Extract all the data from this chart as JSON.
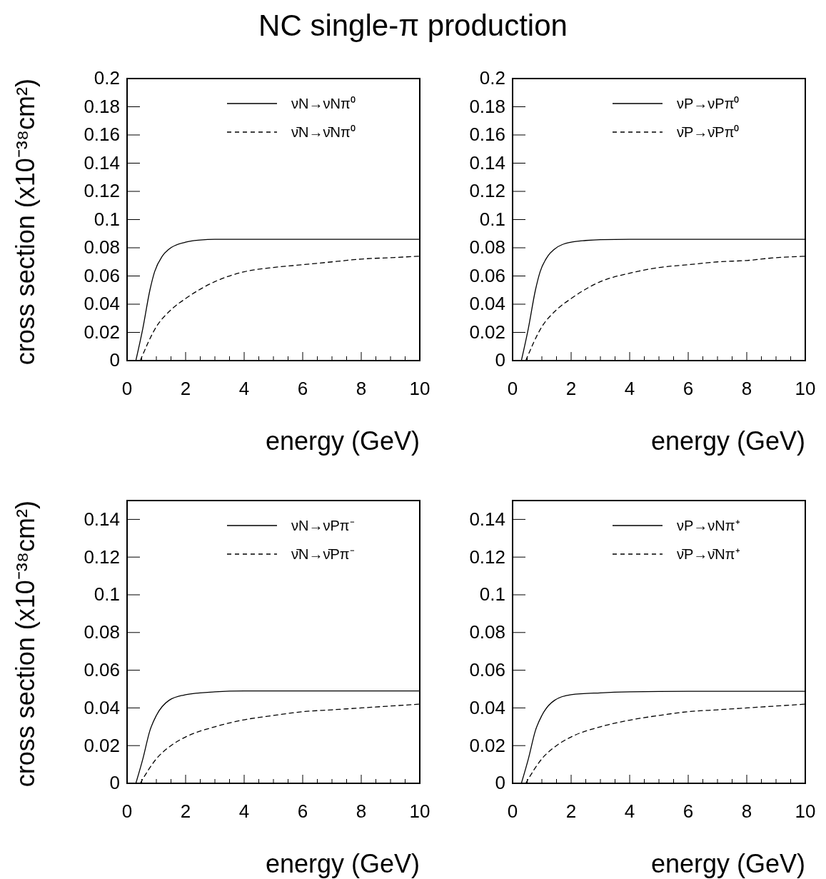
{
  "chart_data": [
    {
      "type": "line",
      "title": "NC single-π production",
      "xlabel": "energy (GeV)",
      "ylabel": "cross section (x10⁻³⁸cm²)",
      "xlim": [
        0,
        10
      ],
      "xticks": [
        0,
        2,
        4,
        6,
        8,
        10
      ],
      "ylim": [
        0,
        0.2
      ],
      "yticks": [
        0,
        0.02,
        0.04,
        0.06,
        0.08,
        0.1,
        0.12,
        0.14,
        0.16,
        0.18,
        0.2
      ],
      "legend": "top right",
      "series": [
        {
          "name": "νN→νNπ⁰",
          "color": "#000000",
          "line_style": "solid",
          "x": [
            0.3,
            0.54,
            0.78,
            0.94,
            1.2,
            1.43,
            2,
            2.5,
            3,
            4,
            6,
            8,
            10
          ],
          "values": [
            0,
            0.023,
            0.05,
            0.063,
            0.074,
            0.079,
            0.084,
            0.0855,
            0.086,
            0.086,
            0.086,
            0.086,
            0.086
          ]
        },
        {
          "name": "ν̄N→ν̄Nπ⁰",
          "color": "#000000",
          "line_style": "dashed",
          "x": [
            0.45,
            1,
            1.5,
            2,
            3,
            4,
            5,
            6,
            7,
            8,
            9,
            10
          ],
          "values": [
            0,
            0.024,
            0.036,
            0.044,
            0.056,
            0.063,
            0.066,
            0.068,
            0.07,
            0.072,
            0.073,
            0.074
          ]
        }
      ]
    },
    {
      "type": "line",
      "xlabel": "energy (GeV)",
      "xlim": [
        0,
        10
      ],
      "xticks": [
        0,
        2,
        4,
        6,
        8,
        10
      ],
      "ylim": [
        0,
        0.2
      ],
      "yticks": [
        0,
        0.02,
        0.04,
        0.06,
        0.08,
        0.1,
        0.12,
        0.14,
        0.16,
        0.18,
        0.2
      ],
      "legend": "top right",
      "series": [
        {
          "name": "νP→νPπ⁰",
          "color": "#000000",
          "line_style": "solid",
          "x": [
            0.3,
            0.54,
            0.78,
            0.94,
            1.2,
            1.43,
            2,
            2.5,
            3,
            4,
            6,
            8,
            10
          ],
          "values": [
            0,
            0.023,
            0.05,
            0.063,
            0.074,
            0.079,
            0.084,
            0.0852,
            0.0858,
            0.086,
            0.086,
            0.086,
            0.086
          ]
        },
        {
          "name": "ν̄P→ν̄Pπ⁰",
          "color": "#000000",
          "line_style": "dashed",
          "x": [
            0.45,
            1,
            1.5,
            2,
            3,
            4,
            5,
            6,
            7,
            8,
            9,
            10
          ],
          "values": [
            0,
            0.024,
            0.036,
            0.044,
            0.056,
            0.062,
            0.066,
            0.068,
            0.07,
            0.071,
            0.073,
            0.074
          ]
        }
      ]
    },
    {
      "type": "line",
      "xlabel": "energy (GeV)",
      "ylabel": "cross section (x10⁻³⁸cm²)",
      "xlim": [
        0,
        10
      ],
      "xticks": [
        0,
        2,
        4,
        6,
        8,
        10
      ],
      "ylim": [
        0,
        0.15
      ],
      "yticks": [
        0,
        0.02,
        0.04,
        0.06,
        0.08,
        0.1,
        0.12,
        0.14
      ],
      "legend": "top right",
      "series": [
        {
          "name": "νN→νPπ⁻",
          "color": "#000000",
          "line_style": "solid",
          "x": [
            0.3,
            0.54,
            0.78,
            1,
            1.43,
            2,
            3,
            4,
            6,
            8,
            10
          ],
          "values": [
            0,
            0.013,
            0.028,
            0.036,
            0.044,
            0.047,
            0.0485,
            0.049,
            0.049,
            0.049,
            0.049
          ]
        },
        {
          "name": "ν̄N→ν̄Pπ⁻",
          "color": "#000000",
          "line_style": "dashed",
          "x": [
            0.45,
            1,
            1.5,
            2,
            3,
            4,
            5,
            6,
            7,
            8,
            9,
            10
          ],
          "values": [
            0,
            0.013,
            0.02,
            0.0246,
            0.03,
            0.0337,
            0.036,
            0.038,
            0.039,
            0.04,
            0.041,
            0.042
          ]
        }
      ]
    },
    {
      "type": "line",
      "xlabel": "energy (GeV)",
      "xlim": [
        0,
        10
      ],
      "xticks": [
        0,
        2,
        4,
        6,
        8,
        10
      ],
      "ylim": [
        0,
        0.15
      ],
      "yticks": [
        0,
        0.02,
        0.04,
        0.06,
        0.08,
        0.1,
        0.12,
        0.14
      ],
      "legend": "top right",
      "series": [
        {
          "name": "νP→νNπ⁺",
          "color": "#000000",
          "line_style": "solid",
          "x": [
            0.3,
            0.54,
            0.78,
            1,
            1.43,
            2,
            3,
            4,
            6,
            8,
            10
          ],
          "values": [
            0,
            0.013,
            0.028,
            0.036,
            0.044,
            0.047,
            0.048,
            0.0485,
            0.0488,
            0.0488,
            0.0488
          ]
        },
        {
          "name": "ν̄P→ν̄Nπ⁺",
          "color": "#000000",
          "line_style": "dashed",
          "x": [
            0.45,
            1,
            1.5,
            2,
            3,
            4,
            5,
            6,
            7,
            8,
            9,
            10
          ],
          "values": [
            0,
            0.013,
            0.02,
            0.0246,
            0.03,
            0.0335,
            0.036,
            0.038,
            0.039,
            0.04,
            0.041,
            0.042
          ]
        }
      ]
    }
  ]
}
